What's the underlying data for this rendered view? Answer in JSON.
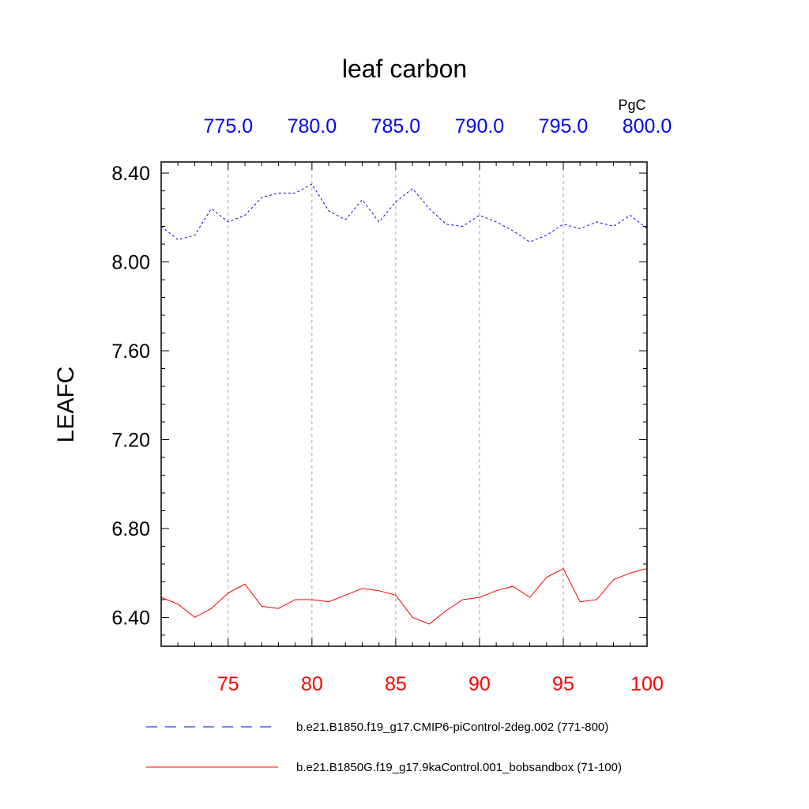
{
  "chart_data": {
    "type": "line",
    "title": "leaf carbon",
    "ylabel": "LEAFC",
    "units_label": "PgC",
    "ylim": [
      6.27,
      8.45
    ],
    "yticks": [
      "6.40",
      "6.80",
      "7.20",
      "7.60",
      "8.00",
      "8.40"
    ],
    "xlim_bottom": [
      71,
      100
    ],
    "xticks_bottom": [
      "75",
      "80",
      "85",
      "90",
      "95",
      "100"
    ],
    "xlim_top": [
      771.0,
      800.0
    ],
    "xticks_top": [
      "775.0",
      "780.0",
      "785.0",
      "790.0",
      "795.0",
      "800.0"
    ],
    "gridlines_x": [
      75,
      80,
      85,
      90,
      95
    ],
    "series": [
      {
        "name": "b.e21.B1850.f19_g17.CMIP6-piControl-2deg.002 (771-800)",
        "axis": "top",
        "color": "#0000ff",
        "style": "dashed",
        "x": [
          771,
          772,
          773,
          774,
          775,
          776,
          777,
          778,
          779,
          780,
          781,
          782,
          783,
          784,
          785,
          786,
          787,
          788,
          789,
          790,
          791,
          792,
          793,
          794,
          795,
          796,
          797,
          798,
          799,
          800
        ],
        "values": [
          8.16,
          8.1,
          8.12,
          8.24,
          8.18,
          8.21,
          8.29,
          8.31,
          8.31,
          8.35,
          8.23,
          8.19,
          8.28,
          8.18,
          8.27,
          8.33,
          8.24,
          8.17,
          8.16,
          8.21,
          8.18,
          8.14,
          8.09,
          8.12,
          8.17,
          8.15,
          8.18,
          8.16,
          8.21,
          8.15
        ]
      },
      {
        "name": "b.e21.B1850G.f19_g17.9kaControl.001_bobsandbox (71-100)",
        "axis": "bottom",
        "color": "#ff0000",
        "style": "solid",
        "x": [
          71,
          72,
          73,
          74,
          75,
          76,
          77,
          78,
          79,
          80,
          81,
          82,
          83,
          84,
          85,
          86,
          87,
          88,
          89,
          90,
          91,
          92,
          93,
          94,
          95,
          96,
          97,
          98,
          99,
          100
        ],
        "values": [
          6.49,
          6.46,
          6.4,
          6.44,
          6.51,
          6.55,
          6.45,
          6.44,
          6.48,
          6.48,
          6.47,
          6.5,
          6.53,
          6.52,
          6.5,
          6.4,
          6.37,
          6.43,
          6.48,
          6.49,
          6.52,
          6.54,
          6.49,
          6.58,
          6.62,
          6.47,
          6.48,
          6.57,
          6.6,
          6.62
        ]
      }
    ],
    "legend": [
      {
        "label": "b.e21.B1850.f19_g17.CMIP6-piControl-2deg.002 (771-800)",
        "color": "#0000ff",
        "style": "dashed"
      },
      {
        "label": "b.e21.B1850G.f19_g17.9kaControl.001_bobsandbox (71-100)",
        "color": "#ff0000",
        "style": "solid"
      }
    ]
  }
}
